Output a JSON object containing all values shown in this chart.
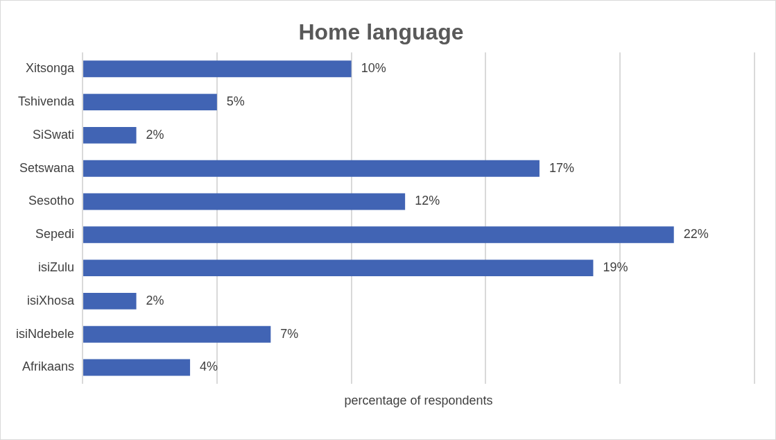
{
  "chart_data": {
    "type": "bar",
    "orientation": "horizontal",
    "title": "Home language",
    "xlabel": "percentage of respondents",
    "categories": [
      "Xitsonga",
      "Tshivenda",
      "SiSwati",
      "Setswana",
      "Sesotho",
      "Sepedi",
      "isiZulu",
      "isiXhosa",
      "isiNdebele",
      "Afrikaans"
    ],
    "values": [
      10,
      5,
      2,
      17,
      12,
      22,
      19,
      2,
      7,
      4
    ],
    "value_labels": [
      "10%",
      "5%",
      "2%",
      "17%",
      "12%",
      "22%",
      "19%",
      "2%",
      "7%",
      "4%"
    ],
    "color": "#4164b4",
    "xlim": [
      0,
      25
    ],
    "xticks": [
      {
        "value": 0,
        "label": null
      },
      {
        "value": 5,
        "label": null
      },
      {
        "value": 10,
        "label": null
      },
      {
        "value": 15,
        "label": null
      },
      {
        "value": 20,
        "label": null
      },
      {
        "value": 25,
        "label": null
      }
    ],
    "tick_labels": "y",
    "grid": "x",
    "legend": false
  }
}
